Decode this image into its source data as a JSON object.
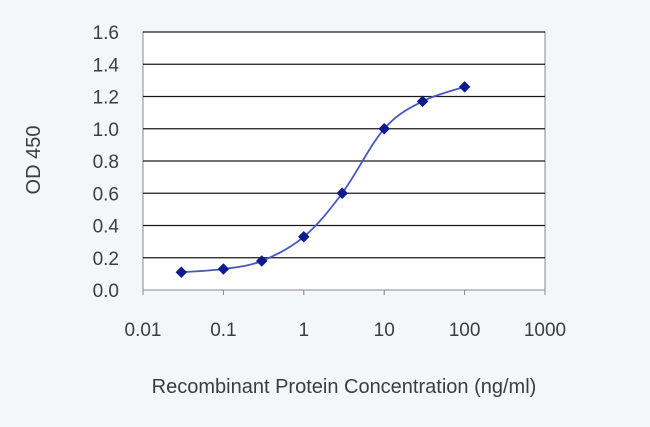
{
  "chart_data": {
    "type": "line",
    "title": "",
    "xlabel": "Recombinant Protein Concentration (ng/ml)",
    "ylabel": "OD 450",
    "x_scale": "log",
    "xlim": [
      0.01,
      1000
    ],
    "ylim": [
      0.0,
      1.6
    ],
    "x_ticks": [
      "0.01",
      "0.1",
      "1",
      "10",
      "100",
      "1000"
    ],
    "y_ticks": [
      "0.0",
      "0.2",
      "0.4",
      "0.6",
      "0.8",
      "1.0",
      "1.2",
      "1.4",
      "1.6"
    ],
    "grid": "horizontal",
    "legend": "none",
    "series": [
      {
        "x": [
          0.03,
          0.1,
          0.3,
          1,
          3,
          10,
          30,
          100
        ],
        "y": [
          0.11,
          0.13,
          0.18,
          0.33,
          0.6,
          1.0,
          1.17,
          1.26
        ]
      }
    ],
    "colors": {
      "line": "#4658c0",
      "marker": "#0d1b8c",
      "grid": "#1a1a1a",
      "text": "#3d3d3d",
      "plot_background": "#ffffff"
    }
  }
}
